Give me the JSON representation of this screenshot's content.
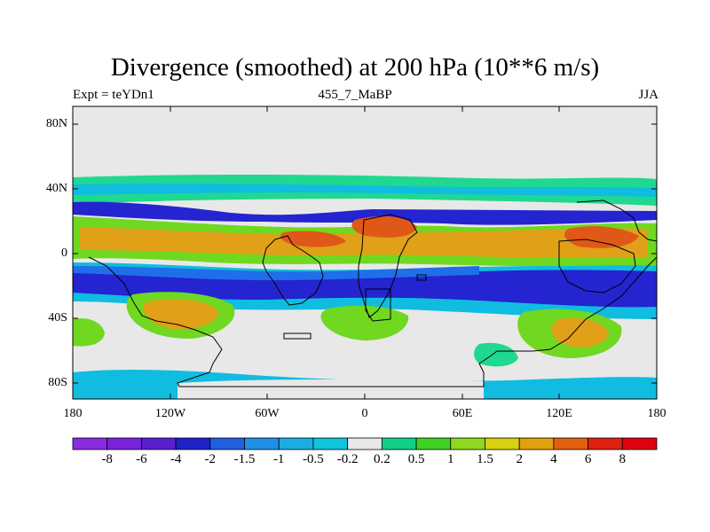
{
  "title": "Divergence (smoothed) at 200 hPa (10**6 m/s)",
  "subtitle_left": "Expt = teYDn1",
  "subtitle_center": "455_7_MaBP",
  "subtitle_right": "JJA",
  "lat_labels": [
    "80N",
    "40N",
    "0",
    "40S",
    "80S"
  ],
  "lon_labels": [
    "180",
    "120W",
    "60W",
    "0",
    "60E",
    "120E",
    "180"
  ],
  "colorbar": {
    "labels": [
      "-8",
      "-6",
      "-4",
      "-2",
      "-1.5",
      "-1",
      "-0.5",
      "-0.2",
      "0.2",
      "0.5",
      "1",
      "1.5",
      "2",
      "4",
      "6",
      "8"
    ],
    "colors": [
      "#8a2be2",
      "#7a22d8",
      "#5a1ed0",
      "#2020c8",
      "#1f5fe0",
      "#1f8fe8",
      "#1aaee0",
      "#10c4dc",
      "#e8e8e8",
      "#10d088",
      "#40d020",
      "#90d820",
      "#d8d010",
      "#e0a010",
      "#e06010",
      "#e02010",
      "#e00010"
    ]
  },
  "colors": {
    "land_mask": "#e8e8e8",
    "strong_neg": "#2424d0",
    "mid_neg": "#1f6fe8",
    "weak_neg": "#10bce0",
    "weak_pos": "#20d890",
    "mid_pos": "#70d820",
    "strong_pos": "#e0a018",
    "max_pos": "#e05818"
  }
}
